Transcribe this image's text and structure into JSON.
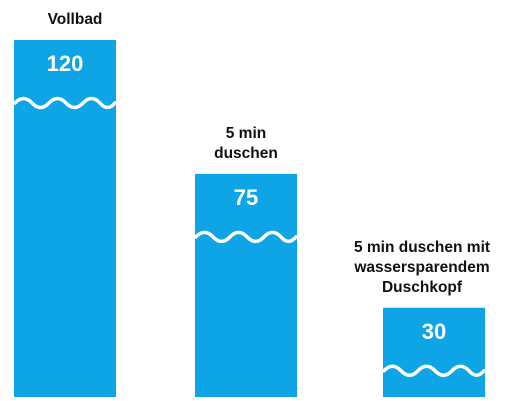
{
  "chart_data": {
    "type": "bar",
    "categories": [
      "Vollbad",
      "5 min\nduschen",
      "5 min duschen mit\nwassersparendem\nDuschkopf"
    ],
    "values": [
      120,
      75,
      30
    ],
    "value_labels": [
      "120",
      "75",
      "30"
    ],
    "bar_color": "#0ea5e6",
    "wave_color": "#ffffff",
    "title": "",
    "xlabel": "",
    "ylabel": "",
    "grid": false,
    "legend": "none"
  }
}
